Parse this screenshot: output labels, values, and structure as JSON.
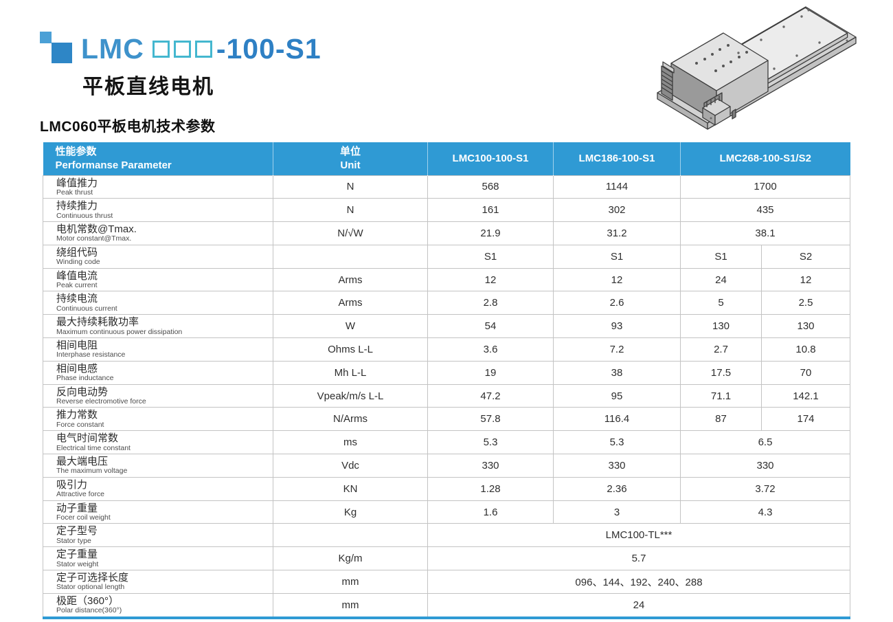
{
  "header": {
    "title_prefix": "LMC",
    "placeholder_boxes": 3,
    "title_suffix": "-100-S1",
    "subtitle": "平板直线电机"
  },
  "section": {
    "title": "LMC060平板电机技术参数"
  },
  "colors": {
    "table_header_blue": "#2F9AD4",
    "title_blue": "#2E80C4",
    "title_box_teal": "#44B7CF",
    "logo_blue": "#2E86C6"
  },
  "product_image": {
    "name": "flat-plate-linear-motor-isometric-drawing"
  },
  "table": {
    "headers": {
      "parameter_zh": "性能参数",
      "parameter_en": "Performanse Parameter",
      "unit_zh": "单位",
      "unit_en": "Unit",
      "models": [
        "LMC100-100-S1",
        "LMC186-100-S1",
        "LMC268-100-S1/S2"
      ]
    },
    "rows": [
      {
        "zh": "峰值推力",
        "en": "Peak thrust",
        "unit": "N",
        "values": [
          "568",
          "1144",
          "1700"
        ]
      },
      {
        "zh": "持续推力",
        "en": "Continuous thrust",
        "unit": "N",
        "values": [
          "161",
          "302",
          "435"
        ]
      },
      {
        "zh": "电机常数@Tmax.",
        "en": "Motor constant@Tmax.",
        "unit": "N/√W",
        "values": [
          "21.9",
          "31.2",
          "38.1"
        ]
      },
      {
        "zh": "绕组代码",
        "en": "Winding code",
        "unit": "",
        "values": [
          "S1",
          "S1",
          "S1",
          "S2"
        ]
      },
      {
        "zh": "峰值电流",
        "en": "Peak current",
        "unit": "Arms",
        "values": [
          "12",
          "12",
          "24",
          "12"
        ]
      },
      {
        "zh": "持续电流",
        "en": "Continuous current",
        "unit": "Arms",
        "values": [
          "2.8",
          "2.6",
          "5",
          "2.5"
        ]
      },
      {
        "zh": "最大持续耗散功率",
        "en": "Maximum continuous power dissipation",
        "unit": "W",
        "values": [
          "54",
          "93",
          "130",
          "130"
        ]
      },
      {
        "zh": "相间电阻",
        "en": "Interphase resistance",
        "unit": "Ohms L-L",
        "values": [
          "3.6",
          "7.2",
          "2.7",
          "10.8"
        ]
      },
      {
        "zh": "相间电感",
        "en": "Phase inductance",
        "unit": "Mh L-L",
        "values": [
          "19",
          "38",
          "17.5",
          "70"
        ]
      },
      {
        "zh": "反向电动势",
        "en": "Reverse electromotive force",
        "unit": "Vpeak/m/s L-L",
        "values": [
          "47.2",
          "95",
          "71.1",
          "142.1"
        ]
      },
      {
        "zh": "推力常数",
        "en": "Force constant",
        "unit": "N/Arms",
        "values": [
          "57.8",
          "116.4",
          "87",
          "174"
        ]
      },
      {
        "zh": "电气时间常数",
        "en": "Electrical time constant",
        "unit": "ms",
        "values": [
          "5.3",
          "5.3",
          "6.5"
        ]
      },
      {
        "zh": "最大端电压",
        "en": "The maximum voltage",
        "unit": "Vdc",
        "values": [
          "330",
          "330",
          "330"
        ]
      },
      {
        "zh": "吸引力",
        "en": "Attractive force",
        "unit": "KN",
        "values": [
          "1.28",
          "2.36",
          "3.72"
        ]
      },
      {
        "zh": "动子重量",
        "en": "Focer coil weight",
        "unit": "Kg",
        "values": [
          "1.6",
          "3",
          "4.3"
        ]
      },
      {
        "zh": "定子型号",
        "en": "Stator type",
        "unit": "",
        "values": [
          "LMC100-TL***"
        ]
      },
      {
        "zh": "定子重量",
        "en": "Stator weight",
        "unit": "Kg/m",
        "values": [
          "5.7"
        ]
      },
      {
        "zh": "定子可选择长度",
        "en": "Stator optional length",
        "unit": "mm",
        "values": [
          "096、144、192、240、288"
        ]
      },
      {
        "zh": "极距（360°）",
        "en": "Polar distance(360°)",
        "unit": "mm",
        "values": [
          "24"
        ]
      }
    ]
  }
}
